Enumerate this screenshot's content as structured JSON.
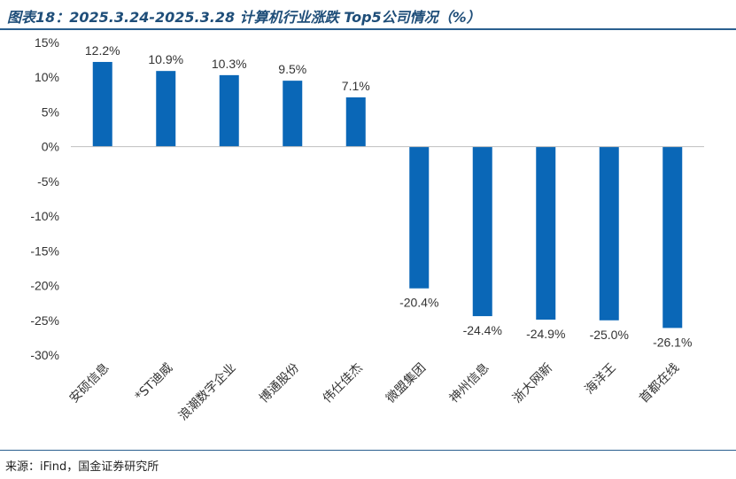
{
  "header": {
    "title": "图表18：2025.3.24-2025.3.28 计算机行业涨跌 Top5公司情况（%）"
  },
  "footer": {
    "source": "来源：iFind，国金证券研究所"
  },
  "colors": {
    "bar": "#0a67b7",
    "axis": "#bfbfbf",
    "title": "#1f4e79",
    "rule": "#2a5f8f"
  },
  "chart_data": {
    "type": "bar",
    "title": "图表18：2025.3.24-2025.3.28 计算机行业涨跌 Top5公司情况（%）",
    "xlabel": "",
    "ylabel": "",
    "categories": [
      "安硕信息",
      "*ST迪威",
      "浪潮数字企业",
      "博通股份",
      "伟仕佳杰",
      "微盟集团",
      "神州信息",
      "浙大网新",
      "海洋王",
      "首都在线"
    ],
    "values": [
      12.2,
      10.9,
      10.3,
      9.5,
      7.1,
      -20.4,
      -24.4,
      -24.9,
      -25.0,
      -26.1
    ],
    "data_labels": [
      "12.2%",
      "10.9%",
      "10.3%",
      "9.5%",
      "7.1%",
      "-20.4%",
      "-24.4%",
      "-24.9%",
      "-25.0%",
      "-26.1%"
    ],
    "ylim": [
      -30,
      15
    ],
    "yticks": [
      15,
      10,
      5,
      0,
      -5,
      -10,
      -15,
      -20,
      -25,
      -30
    ],
    "ytick_labels": [
      "15%",
      "10%",
      "5%",
      "0%",
      "-5%",
      "-10%",
      "-15%",
      "-20%",
      "-25%",
      "-30%"
    ],
    "grid": false,
    "legend": "none"
  }
}
